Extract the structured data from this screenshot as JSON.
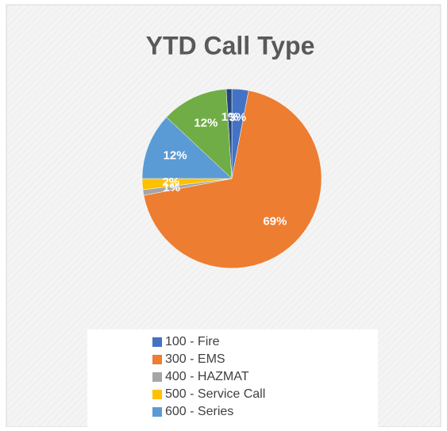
{
  "chart_data": {
    "type": "pie",
    "title": "YTD Call Type",
    "categories": [
      "100 - Fire",
      "300 - EMS",
      "400 - HAZMAT",
      "500 - Service Call",
      "600 - Series",
      null,
      null
    ],
    "values": [
      3,
      69,
      1,
      2,
      12,
      12,
      1
    ],
    "value_labels": [
      "3%",
      "69%",
      "1%",
      "2%",
      "12%",
      "12%",
      "1%"
    ],
    "colors": [
      "#4472c4",
      "#ed7d31",
      "#a5a5a5",
      "#ffc000",
      "#5b9bd5",
      "#70ad47",
      "#264478"
    ],
    "legend": "bottom"
  }
}
